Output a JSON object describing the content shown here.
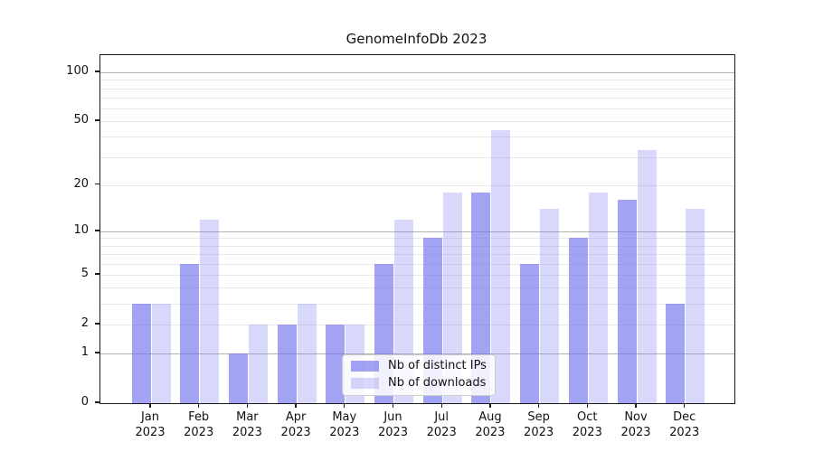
{
  "chart_data": {
    "type": "bar",
    "title": "GenomeInfoDb 2023",
    "categories": [
      "Jan",
      "Feb",
      "Mar",
      "Apr",
      "May",
      "Jun",
      "Jul",
      "Aug",
      "Sep",
      "Oct",
      "Nov",
      "Dec"
    ],
    "category_year": "2023",
    "series": [
      {
        "name": "Nb of distinct IPs",
        "values": [
          3,
          6,
          1,
          2,
          2,
          6,
          9,
          18,
          6,
          9,
          16,
          3
        ]
      },
      {
        "name": "Nb of downloads",
        "values": [
          3,
          12,
          2,
          3,
          2,
          12,
          18,
          44,
          14,
          18,
          33,
          14
        ]
      }
    ],
    "y_scale": "log1p",
    "y_ticks": [
      0,
      1,
      2,
      5,
      10,
      20,
      50,
      100
    ],
    "y_grid_major": [
      1,
      10,
      100
    ],
    "y_grid_minor": [
      2,
      3,
      4,
      5,
      6,
      7,
      8,
      9,
      20,
      30,
      40,
      50,
      60,
      70,
      80,
      90
    ],
    "ylim": [
      0,
      127
    ],
    "grid": "horizontal",
    "legend_position": "inside-bottom-center",
    "colors": {
      "bar_distinct_ips": "rgba(116,116,238,0.66)",
      "bar_downloads": "rgba(116,116,238,0.28)",
      "grid_major": "#b3b3b3",
      "grid_minor": "#e9e9e9",
      "axis": "#1a1a1a",
      "legend_border": "#cccccc"
    }
  }
}
